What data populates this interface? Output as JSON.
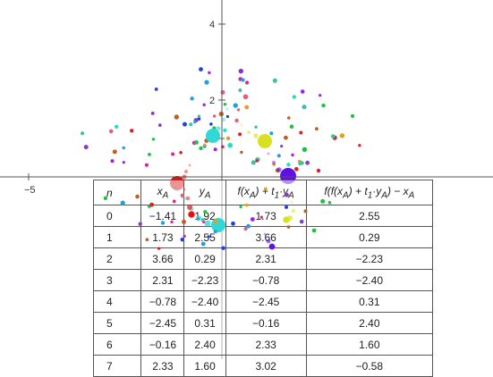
{
  "axes": {
    "x_ticks": [
      "−5"
    ],
    "y_ticks": [
      "4",
      "2"
    ]
  },
  "table": {
    "headers": [
      "n",
      "x_A",
      "y_A",
      "f(x_A) + t·y_A",
      "f(f(x_A) + t₁·y_A) − x_A"
    ],
    "header_html": [
      "<i>n</i>",
      "<i>x</i><sub><i>A</i></sub>",
      "<i>y</i><sub><i>A</i></sub>",
      "<i>f</i>(<i>x</i><sub><i>A</i></sub>) + <i>t</i><sub>1</sub>·<i>y</i><sub><i>A</i></sub>",
      "<i>f</i>(<i>f</i>(<i>x</i><sub><i>A</i></sub>) + <i>t</i><sub>1</sub>·<i>y</i><sub><i>A</i></sub>) − <i>x</i><sub><i>A</i></sub>"
    ],
    "rows": [
      [
        "0",
        "−1.41",
        "1.92",
        "1.73",
        "2.55"
      ],
      [
        "1",
        "1.73",
        "2.55",
        "3.66",
        "0.29"
      ],
      [
        "2",
        "3.66",
        "0.29",
        "2.31",
        "−2.23"
      ],
      [
        "3",
        "2.31",
        "−2.23",
        "−0.78",
        "−2.40"
      ],
      [
        "4",
        "−0.78",
        "−2.40",
        "−2.45",
        "0.31"
      ],
      [
        "5",
        "−2.45",
        "0.31",
        "−0.16",
        "2.40"
      ],
      [
        "6",
        "−0.16",
        "2.40",
        "2.33",
        "1.60"
      ],
      [
        "7",
        "2.33",
        "1.60",
        "3.02",
        "−0.58"
      ]
    ]
  },
  "colors": {
    "axis": "#555555",
    "blob_red": "#e01010",
    "blob_cyan": "#30d8d8",
    "blob_yellow": "#d8e020",
    "blob_purple": "#6010e0",
    "dots": [
      "#e02020",
      "#20a0e0",
      "#20c040",
      "#e0a020",
      "#a020e0",
      "#e020a0",
      "#20e0c0",
      "#8040c0",
      "#c06020",
      "#2040e0",
      "#e06080",
      "#40c0a0"
    ]
  }
}
